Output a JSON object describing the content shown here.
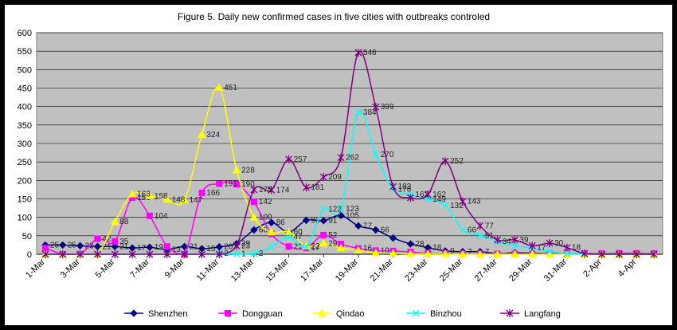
{
  "chart_data": {
    "type": "line",
    "title": "Figure 5. Daily new confirmed cases in five cities with outbreaks controled",
    "xlabel": "",
    "ylabel": "",
    "ylim": [
      0,
      600
    ],
    "yticks": [
      0,
      50,
      100,
      150,
      200,
      250,
      300,
      350,
      400,
      450,
      500,
      550,
      600
    ],
    "grid": true,
    "legend_position": "bottom",
    "x_tick_labels": [
      "1-Mar",
      "3-Mar",
      "5-Mar",
      "7-Mar",
      "9-Mar",
      "11-Mar",
      "13-Mar",
      "15-Mar",
      "17-Mar",
      "19-Mar",
      "21-Mar",
      "23-Mar",
      "25-Mar",
      "27-Mar",
      "29-Mar",
      "31-Mar",
      "2-Apr",
      "4-Apr"
    ],
    "num_days": 36,
    "colors": {
      "plot_bg": "#c0c0c0",
      "gridline": "#000000"
    },
    "series": [
      {
        "name": "Shenzhen",
        "color": "#000080",
        "marker": "diamond",
        "values": [
          25,
          25,
          23,
          21,
          21,
          17,
          19,
          13,
          21,
          15,
          20,
          29,
          66,
          86,
          60,
          92,
          91,
          105,
          77,
          66,
          44,
          28,
          18,
          9,
          7,
          7,
          2,
          4,
          3,
          2,
          2,
          0,
          0,
          1,
          0,
          0
        ],
        "labels": [
          "25",
          "25",
          "23",
          "21",
          "21",
          "17",
          "19",
          "13",
          "21",
          "15",
          "20",
          "29",
          "66",
          "86",
          "60",
          "92",
          "91",
          "105",
          "77",
          "66",
          "",
          "28",
          "18",
          "9",
          "7",
          "7",
          "",
          "",
          "",
          "",
          "",
          "",
          "",
          "",
          "",
          ""
        ]
      },
      {
        "name": "Dongguan",
        "color": "#ff00ff",
        "marker": "square",
        "values": [
          17,
          0,
          0,
          42,
          35,
          153,
          104,
          21,
          0,
          166,
          191,
          190,
          142,
          55,
          21,
          17,
          52,
          28,
          16,
          10,
          9,
          6,
          3,
          2,
          1,
          1,
          1,
          1,
          1,
          1,
          1,
          2,
          2,
          3,
          3,
          2
        ],
        "labels": [
          "",
          "",
          "",
          "42",
          "35",
          "153",
          "104",
          "",
          "",
          "166",
          "191",
          "190",
          "142",
          "",
          "21",
          "17",
          "52",
          "",
          "16",
          "10",
          "",
          "",
          "",
          "",
          "",
          "",
          "",
          "",
          "",
          "",
          "",
          "",
          "",
          "",
          "",
          ""
        ]
      },
      {
        "name": "Qindao",
        "color": "#ffff00",
        "marker": "triangle",
        "values": [
          0,
          0,
          0,
          0,
          88,
          163,
          158,
          148,
          147,
          324,
          451,
          228,
          100,
          60,
          60,
          22,
          29,
          17,
          11,
          4,
          3,
          1,
          1,
          1,
          0,
          0,
          0,
          0,
          0,
          0,
          0,
          0,
          0,
          0,
          0,
          0
        ],
        "labels": [
          "",
          "",
          "",
          "",
          "88",
          "163",
          "158",
          "148",
          "147",
          "324",
          "451",
          "228",
          "100",
          "",
          "",
          "22",
          "29",
          "",
          "",
          "",
          "",
          "",
          "",
          "",
          "",
          "",
          "",
          "",
          "",
          "",
          "",
          "",
          "",
          "",
          "",
          ""
        ]
      },
      {
        "name": "Binzhou",
        "color": "#00ffff",
        "marker": "x",
        "values": [
          0,
          0,
          0,
          0,
          0,
          0,
          0,
          0,
          0,
          0,
          2,
          1,
          2,
          20,
          47,
          20,
          122,
          123,
          384,
          270,
          176,
          162,
          149,
          132,
          66,
          51,
          34,
          23,
          17,
          8,
          2,
          1,
          0,
          0,
          0,
          0
        ],
        "labels": [
          "",
          "",
          "",
          "",
          "",
          "",
          "",
          "",
          "",
          "",
          "2",
          "1",
          "2",
          "",
          "47",
          "",
          "122",
          "123",
          "384",
          "270",
          "176",
          "162",
          "149",
          "132",
          "66",
          "51",
          "34",
          "",
          "17",
          "",
          "",
          "",
          "",
          "",
          "",
          ""
        ]
      },
      {
        "name": "Langfang",
        "color": "#800080",
        "marker": "star",
        "values": [
          0,
          0,
          0,
          0,
          0,
          0,
          0,
          0,
          0,
          0,
          0,
          23,
          175,
          174,
          257,
          181,
          209,
          262,
          546,
          399,
          183,
          153,
          162,
          252,
          143,
          77,
          39,
          39,
          23,
          30,
          18,
          2,
          0,
          0,
          0,
          0
        ],
        "labels": [
          "",
          "",
          "",
          "",
          "",
          "",
          "",
          "",
          "",
          "",
          "",
          "23",
          "175",
          "174",
          "257",
          "181",
          "209",
          "262",
          "546",
          "399",
          "183",
          "",
          "162",
          "252",
          "143",
          "77",
          "",
          "39",
          "",
          "30",
          "18",
          "",
          "",
          "",
          "",
          ""
        ]
      }
    ]
  }
}
